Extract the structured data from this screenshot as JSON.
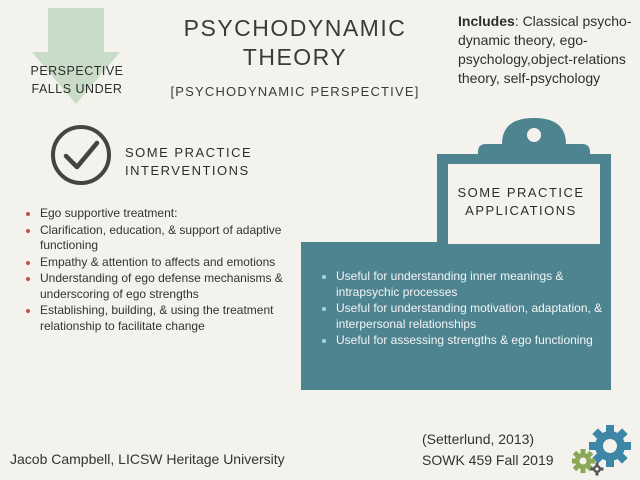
{
  "slide": {
    "title": "PSYCHODYNAMIC THEORY",
    "subtitle": "[PSYCHODYNAMIC PERSPECTIVE]",
    "perspective_label": "PERSPECTIVE FALLS UNDER",
    "includes_label": "Includes",
    "includes_text": ": Classical psycho-dynamic theory, ego-psychology,object-relations theory, self-psychology",
    "interventions": {
      "heading": "SOME PRACTICE INTERVENTIONS",
      "items": [
        "Ego supportive treatment:",
        "Clarification, education, & support of adaptive functioning",
        "Empathy & attention to affects and emotions",
        "Understanding of ego defense mechanisms & underscoring of ego strengths",
        "Establishing, building, & using the treatment relationship to facilitate change"
      ]
    },
    "applications": {
      "heading": "SOME PRACTICE APPLICATIONS",
      "items": [
        "Useful for understanding inner meanings & intrapsychic processes",
        "Useful for understanding motivation, adaptation, & interpersonal relationships",
        "Useful for assessing strengths & ego functioning"
      ]
    },
    "footer": {
      "author": "Jacob Campbell, LICSW Heritage University",
      "citation": "(Setterlund, 2013)",
      "course": "SOWK 459 Fall 2019"
    },
    "colors": {
      "accent_teal": "#4e8390",
      "arrow_green": "#c9dcc8",
      "bullet_red": "#c0504d",
      "gear_blue": "#3e86a8",
      "gear_green": "#8aa858"
    }
  }
}
